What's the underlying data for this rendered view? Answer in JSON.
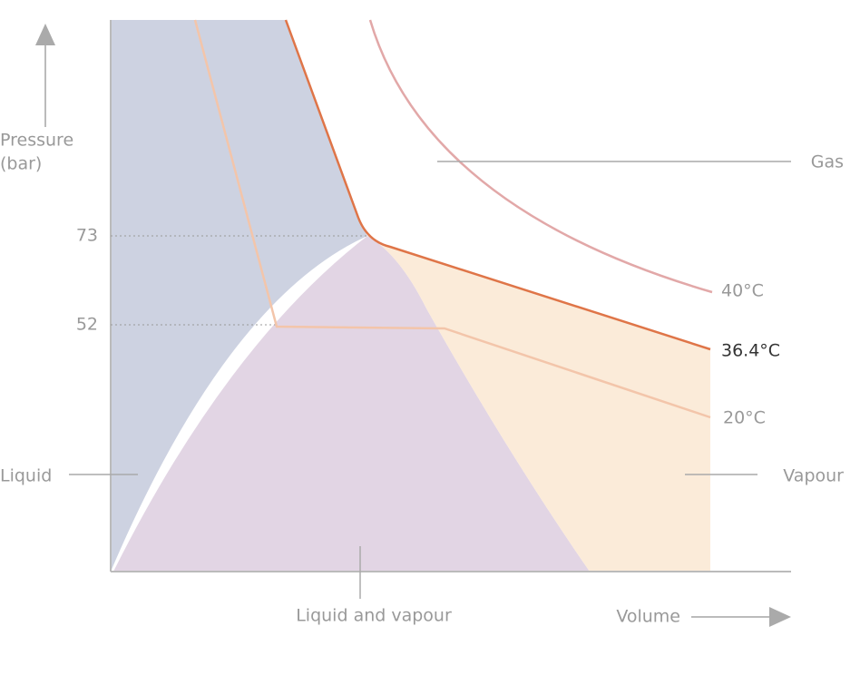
{
  "axis": {
    "y_label": [
      "Pressure",
      "(bar)"
    ],
    "y_marks": [
      "73",
      "52"
    ],
    "x_label": "Volume"
  },
  "regions": {
    "liquid": "Liquid",
    "mixed": "Liquid and vapour",
    "gas": "Gas",
    "vapour": "Vapour"
  },
  "isotherms": [
    "40°C",
    "36.4°C",
    "20°C"
  ]
}
